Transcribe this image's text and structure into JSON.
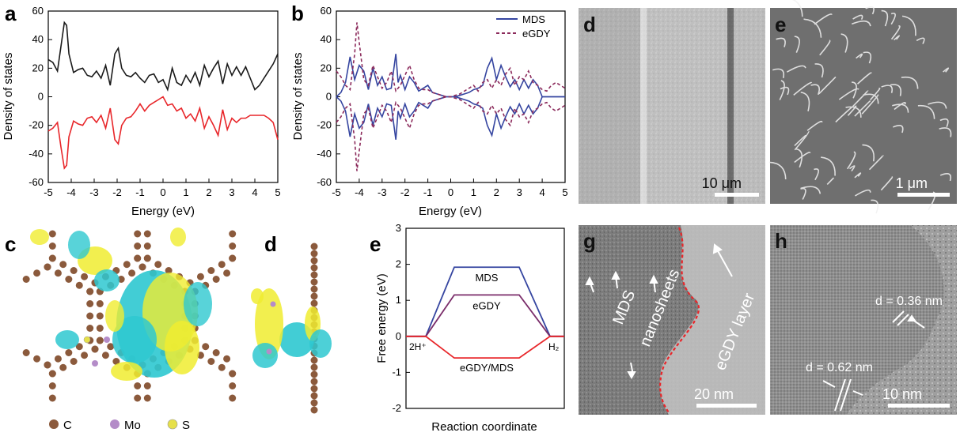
{
  "panel_letters": {
    "a": "a",
    "b": "b",
    "c": "c",
    "d_top": "d",
    "e_top": "e",
    "d_mid": "d",
    "e_mid": "e",
    "g": "g",
    "h": "h"
  },
  "colors": {
    "black_line": "#1a1a1a",
    "red_line": "#e8262a",
    "blue_line": "#3545a0",
    "purple_dash": "#8b2a5b",
    "c_atom": "#8b5a3c",
    "mo_atom": "#b48cc8",
    "s_atom": "#e6e04a",
    "cyan_iso": "#2ec8d0",
    "yellow_iso": "#f0ec30"
  },
  "legend_atoms": [
    {
      "label": "C",
      "color": "#8b5a3c"
    },
    {
      "label": "Mo",
      "color": "#b48cc8"
    },
    {
      "label": "S",
      "color": "#e6e04a"
    }
  ],
  "micrographs": {
    "d_scale": "10 μm",
    "e_scale": "1 μm",
    "g_scale": "20 nm",
    "g_label_mds_1": "MDS",
    "g_label_mds_2": "nanosheets",
    "g_label_egdy": "eGDY layer",
    "h_scale": "10 nm",
    "h_d1": "d = 0.36 nm",
    "h_d2": "d = 0.62 nm"
  },
  "chart_data": [
    {
      "type": "line",
      "panel": "a",
      "xlabel": "Energy (eV)",
      "ylabel": "Density of states",
      "xlim": [
        -5,
        5
      ],
      "ylim": [
        -60,
        60
      ],
      "xticks": [
        -5,
        -4,
        -3,
        -2,
        -1,
        0,
        1,
        2,
        3,
        4,
        5
      ],
      "yticks": [
        -60,
        -40,
        -20,
        0,
        20,
        40,
        60
      ],
      "series": [
        {
          "color": "#1a1a1a",
          "style": "solid",
          "x": [
            -5,
            -4.8,
            -4.6,
            -4.45,
            -4.3,
            -4.2,
            -4.1,
            -3.9,
            -3.7,
            -3.5,
            -3.3,
            -3.1,
            -2.9,
            -2.7,
            -2.5,
            -2.3,
            -2.1,
            -1.95,
            -1.8,
            -1.6,
            -1.4,
            -1.2,
            -1.0,
            -0.8,
            -0.6,
            -0.4,
            -0.2,
            0,
            0.2,
            0.4,
            0.6,
            0.8,
            1.0,
            1.2,
            1.4,
            1.6,
            1.8,
            2.0,
            2.2,
            2.4,
            2.6,
            2.8,
            3.0,
            3.2,
            3.4,
            3.6,
            3.8,
            4.0,
            4.2,
            4.4,
            4.6,
            4.8,
            5
          ],
          "y": [
            26,
            24,
            18,
            35,
            52,
            50,
            30,
            17,
            19,
            20,
            15,
            14,
            18,
            13,
            22,
            8,
            30,
            34,
            20,
            15,
            14,
            17,
            13,
            10,
            15,
            16,
            10,
            12,
            5,
            20,
            10,
            8,
            15,
            10,
            17,
            8,
            22,
            14,
            20,
            25,
            9,
            23,
            15,
            21,
            15,
            21,
            13,
            5,
            8,
            13,
            18,
            23,
            30
          ]
        },
        {
          "color": "#e8262a",
          "style": "solid",
          "x": [
            -5,
            -4.8,
            -4.6,
            -4.45,
            -4.3,
            -4.2,
            -4.1,
            -3.9,
            -3.7,
            -3.5,
            -3.3,
            -3.1,
            -2.9,
            -2.7,
            -2.5,
            -2.3,
            -2.1,
            -1.95,
            -1.8,
            -1.6,
            -1.4,
            -1.2,
            -1.0,
            -0.8,
            -0.6,
            -0.4,
            -0.2,
            0,
            0.2,
            0.4,
            0.6,
            0.8,
            1.0,
            1.2,
            1.4,
            1.6,
            1.8,
            2.0,
            2.2,
            2.4,
            2.6,
            2.8,
            3.0,
            3.2,
            3.4,
            3.6,
            3.8,
            4.0,
            4.2,
            4.4,
            4.6,
            4.8,
            5
          ],
          "y": [
            -24,
            -22,
            -18,
            -35,
            -50,
            -48,
            -28,
            -17,
            -19,
            -20,
            -15,
            -14,
            -18,
            -13,
            -22,
            -8,
            -30,
            -33,
            -20,
            -15,
            -14,
            -10,
            -5,
            -10,
            -6,
            -4,
            -2,
            0,
            -6,
            -5,
            -10,
            -8,
            -15,
            -12,
            -17,
            -8,
            -22,
            -14,
            -20,
            -27,
            -9,
            -23,
            -15,
            -18,
            -15,
            -15,
            -13,
            -13,
            -13,
            -13,
            -15,
            -18,
            -30
          ]
        }
      ]
    },
    {
      "type": "line",
      "panel": "b",
      "xlabel": "Energy (eV)",
      "ylabel": "Density of states",
      "xlim": [
        -5,
        5
      ],
      "ylim": [
        -60,
        60
      ],
      "xticks": [
        -5,
        -4,
        -3,
        -2,
        -1,
        0,
        1,
        2,
        3,
        4,
        5
      ],
      "yticks": [
        -60,
        -40,
        -20,
        0,
        20,
        40,
        60
      ],
      "legend_position": "top-right",
      "series": [
        {
          "name": "MDS",
          "color": "#3545a0",
          "style": "solid",
          "x": [
            -5,
            -4.8,
            -4.6,
            -4.4,
            -4.2,
            -4.0,
            -3.8,
            -3.6,
            -3.4,
            -3.2,
            -3.0,
            -2.8,
            -2.6,
            -2.4,
            -2.3,
            -2.2,
            -2.0,
            -1.8,
            -1.6,
            -1.4,
            -1.2,
            -1.0,
            -0.8,
            -0.6,
            -0.4,
            -0.2,
            0,
            0.2,
            0.4,
            0.6,
            0.8,
            1.0,
            1.2,
            1.4,
            1.6,
            1.8,
            2.0,
            2.2,
            2.4,
            2.6,
            2.8,
            3.0,
            3.2,
            3.4,
            3.6,
            3.8,
            4.0,
            4.2,
            4.4,
            4.6,
            4.8,
            5
          ],
          "y": [
            0,
            3,
            10,
            28,
            12,
            22,
            18,
            5,
            20,
            8,
            14,
            5,
            6,
            30,
            10,
            15,
            5,
            14,
            10,
            4,
            6,
            8,
            3,
            2,
            1,
            0,
            0,
            0,
            1,
            2,
            3,
            5,
            6,
            8,
            20,
            27,
            12,
            22,
            14,
            7,
            12,
            5,
            12,
            6,
            12,
            8,
            0,
            0,
            0,
            0,
            0,
            0
          ]
        },
        {
          "name": "eGDY",
          "color": "#8b2a5b",
          "style": "dashed",
          "x": [
            -5,
            -4.8,
            -4.6,
            -4.4,
            -4.2,
            -4.1,
            -4.0,
            -3.8,
            -3.6,
            -3.4,
            -3.2,
            -3.0,
            -2.8,
            -2.6,
            -2.4,
            -2.2,
            -2.0,
            -1.8,
            -1.6,
            -1.4,
            -1.2,
            -1.0,
            -0.8,
            -0.6,
            -0.4,
            -0.2,
            0,
            0.2,
            0.4,
            0.6,
            0.8,
            1.0,
            1.2,
            1.4,
            1.6,
            1.8,
            2.0,
            2.2,
            2.4,
            2.6,
            2.8,
            3.0,
            3.2,
            3.4,
            3.6,
            3.8,
            4.0,
            4.2,
            4.4,
            4.6,
            4.8,
            5
          ],
          "y": [
            18,
            14,
            8,
            5,
            30,
            52,
            38,
            12,
            8,
            22,
            14,
            6,
            10,
            18,
            4,
            8,
            15,
            22,
            12,
            6,
            5,
            5,
            3,
            2,
            1,
            0,
            0,
            1,
            2,
            4,
            6,
            8,
            4,
            10,
            12,
            6,
            12,
            8,
            16,
            20,
            8,
            14,
            12,
            18,
            10,
            8,
            5,
            4,
            8,
            10,
            8,
            6
          ]
        }
      ]
    },
    {
      "type": "line",
      "panel": "e",
      "xlabel": "Reaction coordinate",
      "ylabel": "Free energy (eV)",
      "ylim": [
        -2,
        3
      ],
      "yticks": [
        -2,
        -1,
        0,
        1,
        2,
        3
      ],
      "endpoint_labels": [
        "2H⁺",
        "H₂"
      ],
      "series": [
        {
          "name": "MDS",
          "color": "#3545a0",
          "points": [
            0,
            0,
            1.92,
            1.92,
            0,
            0
          ]
        },
        {
          "name": "eGDY",
          "color": "#7a2d6a",
          "points": [
            0,
            0,
            1.15,
            1.15,
            0,
            0
          ]
        },
        {
          "name": "eGDY/MDS",
          "color": "#e8262a",
          "points": [
            0,
            0,
            -0.6,
            -0.6,
            0,
            0
          ]
        }
      ]
    }
  ]
}
